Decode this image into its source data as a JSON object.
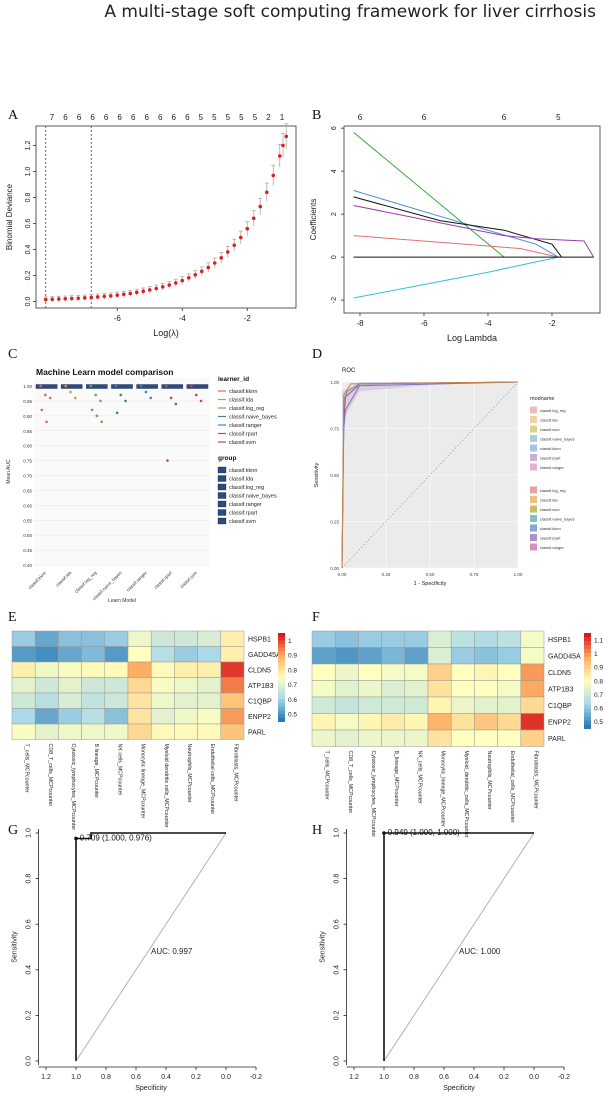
{
  "header": {
    "title": "A multi-stage soft computing framework for liver cirrhosis"
  },
  "panels": {
    "A": {
      "label": "A",
      "chart_data": {
        "type": "line",
        "xlabel": "Log(λ)",
        "ylabel": "Binomial Deviance",
        "xlim": [
          -8.5,
          -0.5
        ],
        "ylim": [
          -0.05,
          1.35
        ],
        "x_ticks": [
          "-6",
          "-4",
          "-2"
        ],
        "y_ticks": [
          "0.0",
          "0.2",
          "0.4",
          "0.6",
          "0.8",
          "1.0",
          "1.2"
        ],
        "top_ticks": [
          "7",
          "6",
          "6",
          "6",
          "6",
          "6",
          "6",
          "6",
          "6",
          "6",
          "6",
          "5",
          "5",
          "5",
          "5",
          "5",
          "2",
          "1"
        ],
        "vlines": [
          -8.2,
          -6.8
        ],
        "x": [
          -8.2,
          -8.0,
          -7.8,
          -7.6,
          -7.4,
          -7.2,
          -7.0,
          -6.8,
          -6.6,
          -6.4,
          -6.2,
          -6.0,
          -5.8,
          -5.6,
          -5.4,
          -5.2,
          -5.0,
          -4.8,
          -4.6,
          -4.4,
          -4.2,
          -4.0,
          -3.8,
          -3.6,
          -3.4,
          -3.2,
          -3.0,
          -2.8,
          -2.6,
          -2.4,
          -2.2,
          -2.0,
          -1.8,
          -1.6,
          -1.4,
          -1.2,
          -1.0,
          -0.9,
          -0.8
        ],
        "y": [
          0.015,
          0.017,
          0.019,
          0.021,
          0.023,
          0.025,
          0.028,
          0.031,
          0.035,
          0.039,
          0.043,
          0.049,
          0.055,
          0.062,
          0.07,
          0.079,
          0.089,
          0.1,
          0.113,
          0.127,
          0.143,
          0.161,
          0.182,
          0.205,
          0.232,
          0.262,
          0.296,
          0.336,
          0.381,
          0.433,
          0.492,
          0.56,
          0.64,
          0.73,
          0.84,
          0.97,
          1.12,
          1.2,
          1.27
        ]
      }
    },
    "B": {
      "label": "B",
      "chart_data": {
        "type": "line",
        "xlabel": "Log Lambda",
        "ylabel": "Coefficients",
        "xlim": [
          -8.5,
          -0.5
        ],
        "ylim": [
          -2.6,
          6.1
        ],
        "x_ticks": [
          "-8",
          "-6",
          "-4",
          "-2"
        ],
        "y_ticks": [
          "-2",
          "0",
          "2",
          "4",
          "6"
        ],
        "top_ticks": [
          "6",
          "6",
          "6",
          "5"
        ],
        "series": [
          {
            "color": "#3aa83a",
            "x": [
              -8.2,
              -3.5
            ],
            "y": [
              5.8,
              0.0
            ]
          },
          {
            "color": "#4a8ed8",
            "x": [
              -8.2,
              -5.5,
              -2.5,
              -1.8
            ],
            "y": [
              3.1,
              1.9,
              0.6,
              0.0
            ]
          },
          {
            "color": "#111111",
            "x": [
              -8.2,
              -5.5,
              -3.5,
              -2.0,
              -1.7
            ],
            "y": [
              2.8,
              1.7,
              1.25,
              0.6,
              0.0
            ]
          },
          {
            "color": "#9a3aa8",
            "x": [
              -8.2,
              -3.5,
              -2.5,
              -1.0,
              -0.7
            ],
            "y": [
              2.4,
              1.0,
              0.85,
              0.75,
              0.0
            ]
          },
          {
            "color": "#e07070",
            "x": [
              -8.2,
              -3.0,
              -1.8
            ],
            "y": [
              1.0,
              0.4,
              0.0
            ]
          },
          {
            "color": "#30c0d8",
            "x": [
              -8.2,
              -4.0,
              -1.8
            ],
            "y": [
              -1.9,
              -0.7,
              0.0
            ]
          },
          {
            "color": "#111111",
            "x": [
              -8.2,
              -0.7
            ],
            "y": [
              0.0,
              0.0
            ]
          }
        ]
      }
    },
    "C": {
      "label": "C",
      "chart_data": {
        "type": "scatter",
        "title": "Machine Learn model comparison",
        "xlabel": "Learn Model",
        "ylabel": "Mean AUC",
        "ylim": [
          0.4,
          1.0
        ],
        "y_ticks": [
          "0.40",
          "0.45",
          "0.50",
          "0.55",
          "0.60",
          "0.65",
          "0.70",
          "0.75",
          "0.80",
          "0.85",
          "0.90",
          "0.95",
          "1.00"
        ],
        "categories": [
          "classif.kknn",
          "classif.lda",
          "classif.log_reg",
          "classif.naive_bayes",
          "classif.ranger",
          "classif.rpart",
          "classif.svm"
        ],
        "points": [
          {
            "learner": "classif.kknn",
            "group": "classif.kknn",
            "values": [
              1.0,
              0.97,
              0.96,
              0.92,
              0.88
            ]
          },
          {
            "learner": "classif.lda",
            "group": "classif.lda",
            "values": [
              1.0,
              0.98,
              0.96
            ]
          },
          {
            "learner": "classif.log_reg",
            "group": "classif.log_reg",
            "values": [
              1.0,
              0.97,
              0.95,
              0.92,
              0.9,
              0.88
            ]
          },
          {
            "learner": "classif.naive_bayes",
            "group": "classif.naive_bayes",
            "values": [
              1.0,
              0.97,
              0.95,
              0.91
            ]
          },
          {
            "learner": "classif.ranger",
            "group": "classif.ranger",
            "values": [
              1.0,
              0.98,
              0.96
            ]
          },
          {
            "learner": "classif.rpart",
            "group": "classif.rpart",
            "values": [
              1.0,
              0.96,
              0.94,
              0.75
            ]
          },
          {
            "learner": "classif.svm",
            "group": "classif.svm",
            "values": [
              1.0,
              0.97,
              0.95
            ]
          }
        ],
        "legend_title_1": "learner_id",
        "legend_title_2": "group",
        "legend_items": [
          "classif.kknn",
          "classif.lda",
          "classif.log_reg",
          "classif.naive_bayes",
          "classif.ranger",
          "classif.rpart",
          "classif.svm"
        ],
        "colors": [
          "#e06666",
          "#e69138",
          "#6aa84f",
          "#45818e",
          "#3d85c6",
          "#a64d79",
          "#cc4444"
        ]
      }
    },
    "D": {
      "label": "D",
      "chart_data": {
        "type": "line",
        "title": "ROC",
        "xlabel": "1 - Specificity",
        "ylabel": "Sensitivity",
        "xlim": [
          0,
          1
        ],
        "ylim": [
          0,
          1
        ],
        "x_ticks": [
          "0.00",
          "0.25",
          "0.50",
          "0.75",
          "1.00"
        ],
        "y_ticks": [
          "0.00",
          "0.25",
          "0.50",
          "0.75",
          "1.00"
        ],
        "legend_title": "modname",
        "legend_1": [
          "classif.log_reg",
          "classif.lda",
          "classif.svm",
          "classif.naive_bayes",
          "classif.kknn",
          "classif.rpart",
          "classif.ranger"
        ],
        "legend_2": [
          "classif.log_reg",
          "classif.lda",
          "classif.svm",
          "classif.naive_bayes",
          "classif.kknn",
          "classif.rpart",
          "classif.ranger"
        ],
        "colors": [
          "#e8a0a0",
          "#e8c080",
          "#c8c060",
          "#80c0c0",
          "#80a8d8",
          "#b090c8",
          "#d890c0"
        ],
        "curves": [
          {
            "color": "#c04070",
            "x": [
              0,
              0.01,
              0.02,
              0.08,
              0.1,
              1.0
            ],
            "y": [
              0,
              0.8,
              0.92,
              0.97,
              0.99,
              1.0
            ]
          },
          {
            "color": "#8070c0",
            "x": [
              0,
              0.01,
              0.02,
              0.1,
              1.0
            ],
            "y": [
              0,
              0.75,
              0.85,
              0.98,
              1.0
            ]
          },
          {
            "color": "#40a8a8",
            "x": [
              0,
              0.01,
              0.03,
              0.1,
              1.0
            ],
            "y": [
              0,
              0.9,
              0.95,
              0.99,
              1.0
            ]
          },
          {
            "color": "#d08040",
            "x": [
              0,
              0.01,
              0.05,
              1.0
            ],
            "y": [
              0,
              0.93,
              0.99,
              1.0
            ]
          }
        ]
      }
    },
    "E": {
      "label": "E",
      "chart_data": {
        "type": "heatmap",
        "rows": [
          "HSPB1",
          "GADD45A",
          "CLDN5",
          "ATP1B3",
          "C1QBP",
          "ENPP2",
          "PARL"
        ],
        "cols": [
          "T_cells_MCPcounter",
          "CD8_T_cells_MCPcounter",
          "Cytotoxic_lymphocytes_MCPcounter",
          "B lineage_MCPcounter",
          "NK cells_MCPcounter",
          "Monocytic lineage_MCPcounter",
          "Myeloid dendritic cells_MCPcounter",
          "Neutrophils_MCPcounter",
          "Endothelial cells_MCPcounter",
          "Fibroblasts_MCPcounter"
        ],
        "scale_ticks": [
          "1",
          "0.9",
          "0.8",
          "0.7",
          "0.6",
          "0.5"
        ],
        "scale_range": [
          0.45,
          1.05
        ],
        "values": [
          [
            0.58,
            0.52,
            0.56,
            0.56,
            0.58,
            0.72,
            0.66,
            0.66,
            0.68,
            0.78
          ],
          [
            0.5,
            0.48,
            0.52,
            0.55,
            0.5,
            0.75,
            0.62,
            0.58,
            0.6,
            0.78
          ],
          [
            0.78,
            0.72,
            0.74,
            0.76,
            0.76,
            0.9,
            0.76,
            0.78,
            0.78,
            1.02
          ],
          [
            0.7,
            0.66,
            0.7,
            0.66,
            0.66,
            0.82,
            0.74,
            0.72,
            0.7,
            0.95
          ],
          [
            0.66,
            0.62,
            0.68,
            0.64,
            0.66,
            0.8,
            0.72,
            0.7,
            0.7,
            0.86
          ],
          [
            0.6,
            0.52,
            0.58,
            0.62,
            0.56,
            0.8,
            0.7,
            0.72,
            0.74,
            0.92
          ],
          [
            0.74,
            0.7,
            0.72,
            0.72,
            0.72,
            0.82,
            0.76,
            0.76,
            0.76,
            0.86
          ]
        ]
      }
    },
    "F": {
      "label": "F",
      "chart_data": {
        "type": "heatmap",
        "rows": [
          "HSPB1",
          "GADD45A",
          "CLDN5",
          "ATP1B3",
          "C1QBP",
          "ENPP2",
          "PARL"
        ],
        "cols": [
          "T_cells_MCPcounter",
          "CD8_T_cells_MCPcounter",
          "Cytotoxic_lymphocytes_MCPcounter",
          "B_lineage_MCPcounter",
          "NK_cells_MCPcounter",
          "Monocytic_lineage_MCPcounter",
          "Myeloid_dendritic_cells_MCPcounter",
          "Neutrophils_MCPcounter",
          "Endothelial_cells_MCPcounter",
          "Fibroblasts_MCPcounter"
        ],
        "scale_ticks": [
          "1.1",
          "1",
          "0.9",
          "0.8",
          "0.7",
          "0.6",
          "0.5"
        ],
        "scale_range": [
          0.45,
          1.15
        ],
        "values": [
          [
            0.6,
            0.58,
            0.6,
            0.6,
            0.6,
            0.72,
            0.66,
            0.64,
            0.66,
            0.78
          ],
          [
            0.52,
            0.5,
            0.52,
            0.56,
            0.52,
            0.72,
            0.6,
            0.58,
            0.6,
            0.78
          ],
          [
            0.8,
            0.76,
            0.8,
            0.78,
            0.78,
            0.9,
            0.8,
            0.82,
            0.8,
            1.0
          ],
          [
            0.78,
            0.74,
            0.76,
            0.72,
            0.74,
            0.86,
            0.8,
            0.8,
            0.78,
            0.98
          ],
          [
            0.7,
            0.68,
            0.7,
            0.7,
            0.7,
            0.82,
            0.76,
            0.74,
            0.74,
            0.88
          ],
          [
            0.82,
            0.78,
            0.82,
            0.84,
            0.82,
            0.96,
            0.86,
            0.92,
            0.88,
            1.12
          ],
          [
            0.76,
            0.74,
            0.76,
            0.76,
            0.76,
            0.86,
            0.8,
            0.8,
            0.8,
            0.9
          ]
        ]
      }
    },
    "G": {
      "label": "G",
      "chart_data": {
        "type": "line",
        "xlabel": "Specificity",
        "ylabel": "Sensitivity",
        "x_ticks": [
          "1.2",
          "1.0",
          "0.8",
          "0.6",
          "0.4",
          "0.2",
          "0.0",
          "-0.2"
        ],
        "y_ticks": [
          "0.0",
          "0.2",
          "0.4",
          "0.6",
          "0.8",
          "1.0"
        ],
        "auc_label": "AUC: 0.997",
        "threshold_label": "0.709 (1.000, 0.976)",
        "roc_x": [
          1.0,
          1.0,
          0.976,
          0.976,
          0.9,
          0.9,
          0.0
        ],
        "roc_y": [
          0.0,
          0.976,
          0.976,
          0.976,
          0.976,
          1.0,
          1.0
        ]
      }
    },
    "H": {
      "label": "H",
      "chart_data": {
        "type": "line",
        "xlabel": "Specificity",
        "ylabel": "Sensitivity",
        "x_ticks": [
          "1.2",
          "1.0",
          "0.8",
          "0.6",
          "0.4",
          "0.2",
          "0.0",
          "-0.2"
        ],
        "y_ticks": [
          "0.0",
          "0.2",
          "0.4",
          "0.6",
          "0.8",
          "1.0"
        ],
        "auc_label": "AUC: 1.000",
        "threshold_label": "0.949 (1.000, 1.000)",
        "roc_x": [
          1.0,
          1.0,
          0.0
        ],
        "roc_y": [
          0.0,
          1.0,
          1.0
        ]
      }
    }
  }
}
